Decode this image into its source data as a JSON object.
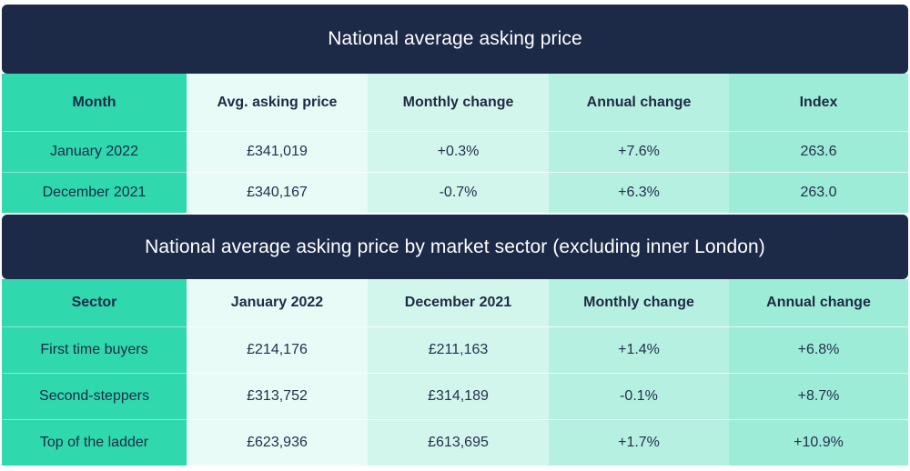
{
  "table1": {
    "title": "National average asking price",
    "headers": [
      "Month",
      "Avg. asking price",
      "Monthly change",
      "Annual change",
      "Index"
    ],
    "rows": [
      [
        "January 2022",
        "£341,019",
        "+0.3%",
        "+7.6%",
        "263.6"
      ],
      [
        "December 2021",
        "£340,167",
        "-0.7%",
        "+6.3%",
        "263.0"
      ]
    ]
  },
  "table2": {
    "title": "National average asking price by market sector (excluding inner London)",
    "headers": [
      "Sector",
      "January 2022",
      "December 2021",
      "Monthly change",
      "Annual change"
    ],
    "rows": [
      [
        "First time buyers",
        "£214,176",
        "£211,163",
        "+1.4%",
        "+6.8%"
      ],
      [
        "Second-steppers",
        "£313,752",
        "£314,189",
        "-0.1%",
        "+8.7%"
      ],
      [
        "Top of the ladder",
        "£623,936",
        "£613,695",
        "+1.7%",
        "+10.9%"
      ]
    ]
  },
  "colors": {
    "banner": "#1c2a48",
    "first_column": "#2fd8ad",
    "column_shades": [
      "#e8fbf6",
      "#d3f6ec",
      "#b6f0e1",
      "#9decd8"
    ]
  }
}
